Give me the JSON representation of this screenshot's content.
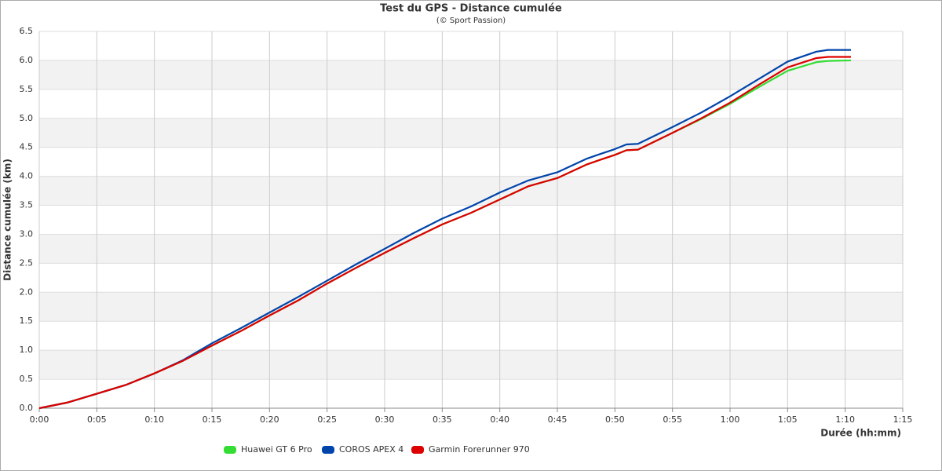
{
  "chart_data": {
    "type": "line",
    "title": "Test du GPS - Distance cumulée",
    "subtitle": "(© Sport Passion)",
    "x_label": "Durée (hh:mm)",
    "y_label": "Distance cumulée (km)",
    "x": [
      0,
      2.5,
      5,
      7.5,
      10,
      12.5,
      15,
      17.5,
      20,
      22.5,
      25,
      27.5,
      30,
      32.5,
      35,
      37.5,
      40,
      42.5,
      45,
      47.5,
      48.5,
      50,
      51,
      52,
      55,
      57.5,
      60,
      62.5,
      65,
      67.5,
      68.5,
      70.5
    ],
    "series": [
      {
        "name": "Huawei GT 6 Pro",
        "color": "#33dd33",
        "values": [
          0,
          0.1,
          0.25,
          0.4,
          0.6,
          0.82,
          1.08,
          1.33,
          1.6,
          1.86,
          2.15,
          2.42,
          2.68,
          2.93,
          3.17,
          3.37,
          3.6,
          3.83,
          3.97,
          4.2,
          4.27,
          4.37,
          4.45,
          4.46,
          4.75,
          4.99,
          5.25,
          5.54,
          5.82,
          5.97,
          5.99,
          6.0
        ]
      },
      {
        "name": "COROS APEX 4",
        "color": "#0044aa",
        "values": [
          0,
          0.1,
          0.25,
          0.4,
          0.6,
          0.83,
          1.12,
          1.38,
          1.65,
          1.92,
          2.2,
          2.48,
          2.75,
          3.02,
          3.27,
          3.48,
          3.72,
          3.93,
          4.07,
          4.3,
          4.37,
          4.47,
          4.55,
          4.56,
          4.85,
          5.1,
          5.38,
          5.68,
          5.98,
          6.15,
          6.18,
          6.18
        ]
      },
      {
        "name": "Garmin Forerunner 970",
        "color": "#dd0000",
        "values": [
          0,
          0.1,
          0.25,
          0.4,
          0.6,
          0.82,
          1.08,
          1.33,
          1.6,
          1.86,
          2.15,
          2.42,
          2.68,
          2.93,
          3.17,
          3.37,
          3.6,
          3.83,
          3.97,
          4.2,
          4.27,
          4.37,
          4.45,
          4.46,
          4.75,
          5.0,
          5.27,
          5.58,
          5.88,
          6.04,
          6.06,
          6.06
        ]
      }
    ],
    "xlim": [
      0,
      75
    ],
    "xticks": [
      {
        "value": 0,
        "label": "0:00"
      },
      {
        "value": 5,
        "label": "0:05"
      },
      {
        "value": 10,
        "label": "0:10"
      },
      {
        "value": 15,
        "label": "0:15"
      },
      {
        "value": 20,
        "label": "0:20"
      },
      {
        "value": 25,
        "label": "0:25"
      },
      {
        "value": 30,
        "label": "0:30"
      },
      {
        "value": 35,
        "label": "0:35"
      },
      {
        "value": 40,
        "label": "0:40"
      },
      {
        "value": 45,
        "label": "0:45"
      },
      {
        "value": 50,
        "label": "0:50"
      },
      {
        "value": 55,
        "label": "0:55"
      },
      {
        "value": 60,
        "label": "1:00"
      },
      {
        "value": 65,
        "label": "1:05"
      },
      {
        "value": 70,
        "label": "1:10"
      },
      {
        "value": 75,
        "label": "1:15"
      }
    ],
    "ylim": [
      0,
      6.5
    ],
    "yticks": [
      {
        "value": 0,
        "label": "0.0"
      },
      0.5,
      {
        "value": 1,
        "label": "1.0"
      },
      1.5,
      {
        "value": 2,
        "label": "2.0"
      },
      2.5,
      {
        "value": 3,
        "label": "3.0"
      },
      3.5,
      {
        "value": 4,
        "label": "4.0"
      },
      4.5,
      {
        "value": 5,
        "label": "5.0"
      },
      5.5,
      {
        "value": 6,
        "label": "6.0"
      },
      6.5
    ],
    "grid": true,
    "legend": "bottom"
  }
}
